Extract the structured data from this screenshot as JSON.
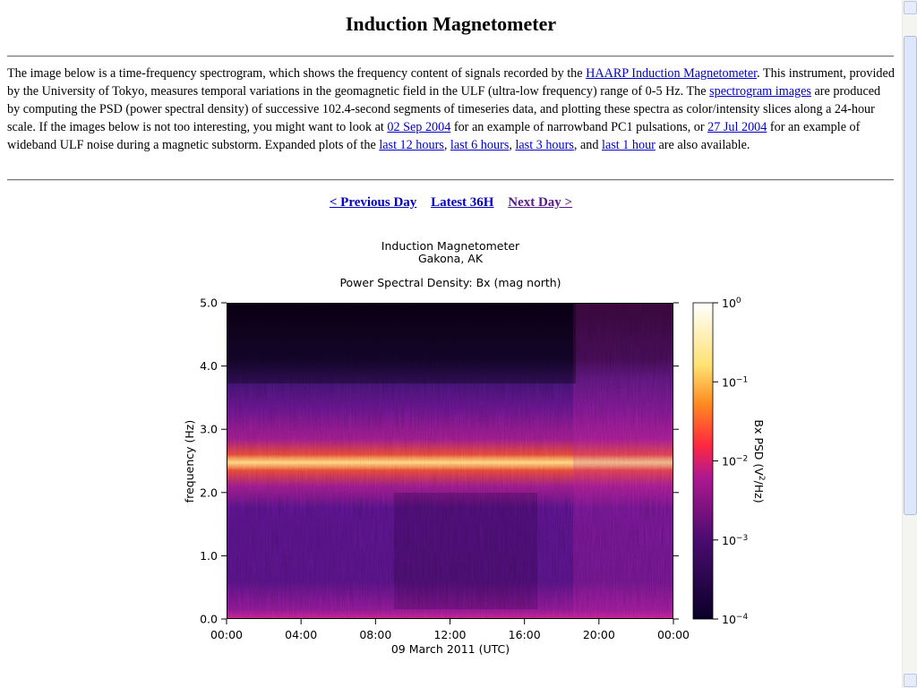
{
  "header": {
    "title": "Induction Magnetometer"
  },
  "intro": [
    "The image below is a time-frequency spectrogram, which shows the frequency content of signals recorded by the ",
    {
      "link": "HAARP Induction Magnetometer"
    },
    ". This instrument, provided by the University of Tokyo, measures temporal variations in the geomagnetic field in the ULF (ultra-low frequency) range of 0-5 Hz. The ",
    {
      "link": "spectrogram images"
    },
    " are produced by computing the PSD (power spectral density) of successive 102.4-second segments of timeseries data, and plotting these spectra as color/intensity slices along a 24-hour scale. If the images below is not too interesting, you might want to look at ",
    {
      "link": "02 Sep 2004"
    },
    " for an example of narrowband PC1 pulsations, or ",
    {
      "link": "27 Jul 2004"
    },
    " for an example of wideband ULF noise during a magnetic substorm. Expanded plots of the ",
    {
      "link": "last 12 hours"
    },
    ", ",
    {
      "link": "last 6 hours"
    },
    ", ",
    {
      "link": "last 3 hours"
    },
    ", and ",
    {
      "link": "last 1 hour"
    },
    " are also available."
  ],
  "nav": [
    "< Previous Day",
    "Latest 36H",
    "Next Day >"
  ],
  "plot": {
    "title": "Induction Magnetometer",
    "location": "Gakona, AK",
    "subtitle": "Power Spectral Density: Bx (mag north)",
    "ylabel": "frequency (Hz)",
    "xlabel": "09 March 2011 (UTC)",
    "ylim": [
      0,
      5
    ],
    "yticks": [
      {
        "value": 0,
        "label": "0.0"
      },
      {
        "value": 1,
        "label": "1.0"
      },
      {
        "value": 2,
        "label": "2.0"
      },
      {
        "value": 3,
        "label": "3.0"
      },
      {
        "value": 4,
        "label": "4.0"
      },
      {
        "value": 5,
        "label": "5.0"
      }
    ],
    "xticks": [
      "00:00",
      "04:00",
      "08:00",
      "12:00",
      "16:00",
      "20:00",
      "00:00"
    ],
    "clim": [
      0.0001,
      1
    ],
    "cticks": [
      {
        "value": 1,
        "base": "10",
        "exponent": "0"
      },
      {
        "value": 0.1,
        "base": "10",
        "exponent": "−1"
      },
      {
        "value": 0.01,
        "base": "10",
        "exponent": "−2"
      },
      {
        "value": 0.001,
        "base": "10",
        "exponent": "−3"
      },
      {
        "value": 0.0001,
        "base": "10",
        "exponent": "−4"
      }
    ],
    "clabel": {
      "before": "Bx PSD (V",
      "sup": "2",
      "after": "/Hz)"
    }
  }
}
